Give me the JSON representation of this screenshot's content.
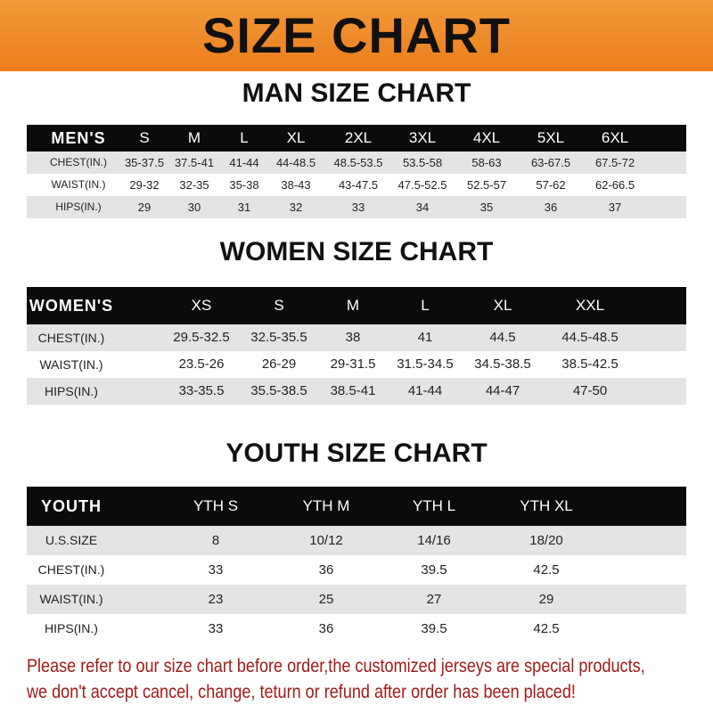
{
  "header": {
    "title": "SIZE CHART"
  },
  "tables": [
    {
      "title": "MAN SIZE CHART",
      "columns": [
        "MEN'S",
        "S",
        "M",
        "L",
        "XL",
        "2XL",
        "3XL",
        "4XL",
        "5XL",
        "6XL"
      ],
      "rows": [
        [
          "CHEST(IN.)",
          "35-37.5",
          "37.5-41",
          "41-44",
          "44-48.5",
          "48.5-53.5",
          "53.5-58",
          "58-63",
          "63-67.5",
          "67.5-72"
        ],
        [
          "WAIST(IN.)",
          "29-32",
          "32-35",
          "35-38",
          "38-43",
          "43-47.5",
          "47.5-52.5",
          "52.5-57",
          "57-62",
          "62-66.5"
        ],
        [
          "HIPS(IN.)",
          "29",
          "30",
          "31",
          "32",
          "33",
          "34",
          "35",
          "36",
          "37"
        ]
      ]
    },
    {
      "title": "WOMEN SIZE CHART",
      "columns": [
        "WOMEN'S",
        "XS",
        "S",
        "M",
        "L",
        "XL",
        "XXL"
      ],
      "rows": [
        [
          "CHEST(IN.)",
          "29.5-32.5",
          "32.5-35.5",
          "38",
          "41",
          "44.5",
          "44.5-48.5"
        ],
        [
          "WAIST(IN.)",
          "23.5-26",
          "26-29",
          "29-31.5",
          "31.5-34.5",
          "34.5-38.5",
          "38.5-42.5"
        ],
        [
          "HIPS(IN.)",
          "33-35.5",
          "35.5-38.5",
          "38.5-41",
          "41-44",
          "44-47",
          "47-50"
        ]
      ]
    },
    {
      "title": "YOUTH SIZE CHART",
      "columns": [
        "YOUTH",
        "YTH S",
        "YTH M",
        "YTH L",
        "YTH XL"
      ],
      "rows": [
        [
          "U.S.SIZE",
          "8",
          "10/12",
          "14/16",
          "18/20"
        ],
        [
          "CHEST(IN.)",
          "33",
          "36",
          "39.5",
          "42.5"
        ],
        [
          "WAIST(IN.)",
          "23",
          "25",
          "27",
          "29"
        ],
        [
          "HIPS(IN.)",
          "33",
          "36",
          "39.5",
          "42.5"
        ]
      ]
    }
  ],
  "note": {
    "line1": "Please refer to our size chart before order,the customized jerseys are special products,",
    "line2": "we don't accept cancel, change, teturn or refund after order has been placed!"
  },
  "colors": {
    "banner": "#ec7d1c",
    "header_row": "#0b0b0b",
    "stripe": "#e4e4e4",
    "note": "#a21a1a"
  }
}
